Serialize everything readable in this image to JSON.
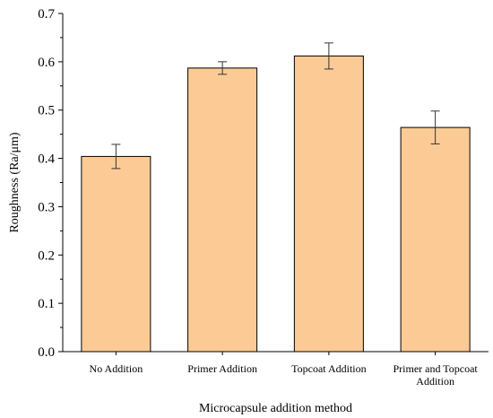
{
  "chart_data": {
    "type": "bar",
    "title": "",
    "xlabel": "Microcapsule addition method",
    "ylabel": "Roughness (Ra/μm)",
    "categories": [
      [
        "No Addition"
      ],
      [
        "Primer Addition"
      ],
      [
        "Topcoat Addition"
      ],
      [
        "Primer and Topcoat",
        "Addition"
      ]
    ],
    "values": [
      0.404,
      0.587,
      0.612,
      0.464
    ],
    "errors": [
      0.025,
      0.013,
      0.027,
      0.034
    ],
    "ylim": [
      0,
      0.7
    ],
    "yticks": [
      "0.0",
      "0.1",
      "0.2",
      "0.3",
      "0.4",
      "0.5",
      "0.6",
      "0.7"
    ],
    "grid": false,
    "legend": "none",
    "colors": {
      "bar_fill": "#FCCB95",
      "bar_stroke": "#000000",
      "axis": "#000000"
    }
  }
}
